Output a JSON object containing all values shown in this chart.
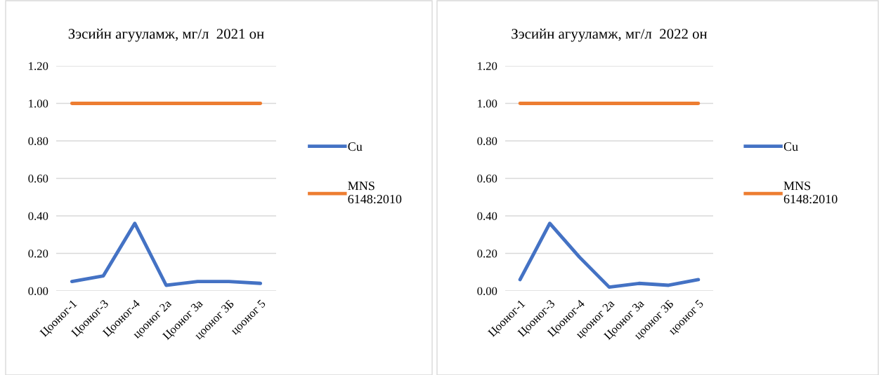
{
  "chart_data": [
    {
      "type": "line",
      "title": "Зэсийн агууламж, мг/л  2021 он",
      "categories": [
        "Цооног-1",
        "Цооног-3",
        "Цооног-4",
        "цооног 2а",
        "Цооног 3а",
        "цооног 3Б",
        "цооног 5"
      ],
      "series": [
        {
          "name": "Cu",
          "color": "#4472c4",
          "values": [
            0.05,
            0.08,
            0.36,
            0.03,
            0.05,
            0.05,
            0.04
          ]
        },
        {
          "name": "MNS\n6148:2010",
          "color": "#ed7d31",
          "values": [
            1.0,
            1.0,
            1.0,
            1.0,
            1.0,
            1.0,
            1.0
          ]
        }
      ],
      "ylim": [
        0,
        1.2
      ],
      "yticks": [
        {
          "value": 0,
          "label": "0.00"
        },
        {
          "value": 0.2,
          "label": "0.20"
        },
        {
          "value": 0.4,
          "label": "0.40"
        },
        {
          "value": 0.6,
          "label": "0.60"
        },
        {
          "value": 0.8,
          "label": "0.80"
        },
        {
          "value": 1.0,
          "label": "1.00"
        },
        {
          "value": 1.2,
          "label": "1.20"
        }
      ],
      "grid": "y",
      "legend": "right"
    },
    {
      "type": "line",
      "title": "Зэсийн агууламж, мг/л  2022 он",
      "categories": [
        "Цооног-1",
        "Цооног-3",
        "Цооног-4",
        "цооног 2а",
        "Цооног 3а",
        "цооног 3Б",
        "цооног 5"
      ],
      "series": [
        {
          "name": "Cu",
          "color": "#4472c4",
          "values": [
            0.06,
            0.36,
            0.18,
            0.02,
            0.04,
            0.03,
            0.06
          ]
        },
        {
          "name": "MNS\n6148:2010",
          "color": "#ed7d31",
          "values": [
            1.0,
            1.0,
            1.0,
            1.0,
            1.0,
            1.0,
            1.0
          ]
        }
      ],
      "ylim": [
        0,
        1.2
      ],
      "yticks": [
        {
          "value": 0,
          "label": "0.00"
        },
        {
          "value": 0.2,
          "label": "0.20"
        },
        {
          "value": 0.4,
          "label": "0.40"
        },
        {
          "value": 0.6,
          "label": "0.60"
        },
        {
          "value": 0.8,
          "label": "0.80"
        },
        {
          "value": 1.0,
          "label": "1.00"
        },
        {
          "value": 1.2,
          "label": "1.20"
        }
      ],
      "grid": "y",
      "legend": "right"
    }
  ]
}
